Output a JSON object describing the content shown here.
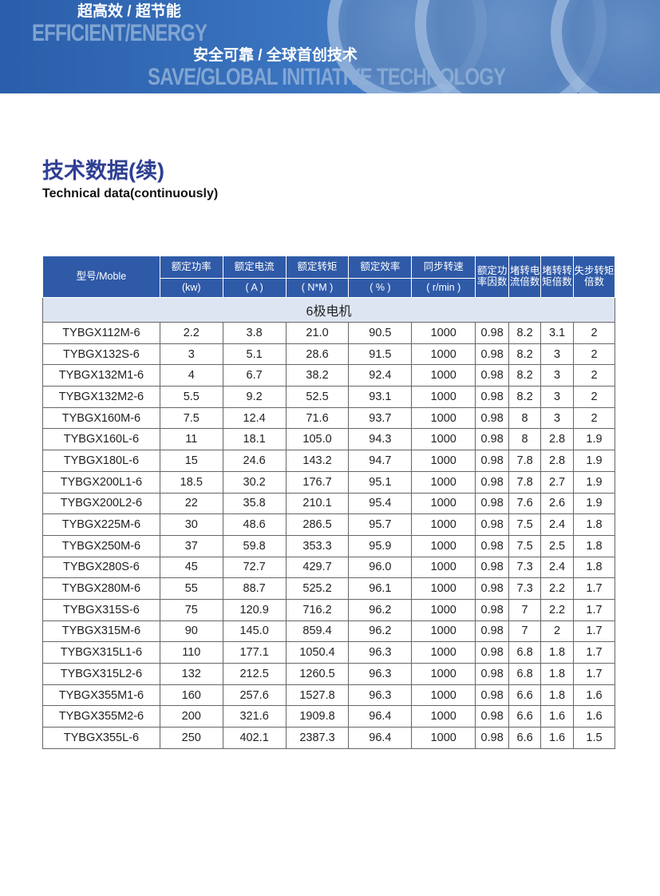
{
  "banner": {
    "line1_cn": "超高效 / 超节能",
    "line1_en": "EFFICIENT/ENERGY",
    "line2_cn": "安全可靠 / 全球首创技术",
    "line2_en": "SAVE/GLOBAL INITIATIVE TECHNOLOGY"
  },
  "heading": {
    "cn": "技术数据(续)",
    "en": "Technical data(continuously)"
  },
  "table": {
    "headers": {
      "model": "型号/Moble",
      "power": "额定功率",
      "power_unit": "(kw)",
      "current": "额定电流",
      "current_unit": "( A )",
      "torque": "额定转矩",
      "torque_unit": "( N*M )",
      "eff": "额定效率",
      "eff_unit": "( % )",
      "speed": "同步转速",
      "speed_unit": "( r/min )",
      "pf": "额定功率因数",
      "lrc": "堵转电流倍数",
      "lrt": "堵转转矩倍数",
      "pullout": "失步转矩倍数"
    },
    "section": "6极电机",
    "rows": [
      [
        "TYBGX112M-6",
        "2.2",
        "3.8",
        "21.0",
        "90.5",
        "1000",
        "0.98",
        "8.2",
        "3.1",
        "2"
      ],
      [
        "TYBGX132S-6",
        "3",
        "5.1",
        "28.6",
        "91.5",
        "1000",
        "0.98",
        "8.2",
        "3",
        "2"
      ],
      [
        "TYBGX132M1-6",
        "4",
        "6.7",
        "38.2",
        "92.4",
        "1000",
        "0.98",
        "8.2",
        "3",
        "2"
      ],
      [
        "TYBGX132M2-6",
        "5.5",
        "9.2",
        "52.5",
        "93.1",
        "1000",
        "0.98",
        "8.2",
        "3",
        "2"
      ],
      [
        "TYBGX160M-6",
        "7.5",
        "12.4",
        "71.6",
        "93.7",
        "1000",
        "0.98",
        "8",
        "3",
        "2"
      ],
      [
        "TYBGX160L-6",
        "11",
        "18.1",
        "105.0",
        "94.3",
        "1000",
        "0.98",
        "8",
        "2.8",
        "1.9"
      ],
      [
        "TYBGX180L-6",
        "15",
        "24.6",
        "143.2",
        "94.7",
        "1000",
        "0.98",
        "7.8",
        "2.8",
        "1.9"
      ],
      [
        "TYBGX200L1-6",
        "18.5",
        "30.2",
        "176.7",
        "95.1",
        "1000",
        "0.98",
        "7.8",
        "2.7",
        "1.9"
      ],
      [
        "TYBGX200L2-6",
        "22",
        "35.8",
        "210.1",
        "95.4",
        "1000",
        "0.98",
        "7.6",
        "2.6",
        "1.9"
      ],
      [
        "TYBGX225M-6",
        "30",
        "48.6",
        "286.5",
        "95.7",
        "1000",
        "0.98",
        "7.5",
        "2.4",
        "1.8"
      ],
      [
        "TYBGX250M-6",
        "37",
        "59.8",
        "353.3",
        "95.9",
        "1000",
        "0.98",
        "7.5",
        "2.5",
        "1.8"
      ],
      [
        "TYBGX280S-6",
        "45",
        "72.7",
        "429.7",
        "96.0",
        "1000",
        "0.98",
        "7.3",
        "2.4",
        "1.8"
      ],
      [
        "TYBGX280M-6",
        "55",
        "88.7",
        "525.2",
        "96.1",
        "1000",
        "0.98",
        "7.3",
        "2.2",
        "1.7"
      ],
      [
        "TYBGX315S-6",
        "75",
        "120.9",
        "716.2",
        "96.2",
        "1000",
        "0.98",
        "7",
        "2.2",
        "1.7"
      ],
      [
        "TYBGX315M-6",
        "90",
        "145.0",
        "859.4",
        "96.2",
        "1000",
        "0.98",
        "7",
        "2",
        "1.7"
      ],
      [
        "TYBGX315L1-6",
        "110",
        "177.1",
        "1050.4",
        "96.3",
        "1000",
        "0.98",
        "6.8",
        "1.8",
        "1.7"
      ],
      [
        "TYBGX315L2-6",
        "132",
        "212.5",
        "1260.5",
        "96.3",
        "1000",
        "0.98",
        "6.8",
        "1.8",
        "1.7"
      ],
      [
        "TYBGX355M1-6",
        "160",
        "257.6",
        "1527.8",
        "96.3",
        "1000",
        "0.98",
        "6.6",
        "1.8",
        "1.6"
      ],
      [
        "TYBGX355M2-6",
        "200",
        "321.6",
        "1909.8",
        "96.4",
        "1000",
        "0.98",
        "6.6",
        "1.6",
        "1.6"
      ],
      [
        "TYBGX355L-6",
        "250",
        "402.1",
        "2387.3",
        "96.4",
        "1000",
        "0.98",
        "6.6",
        "1.6",
        "1.5"
      ]
    ]
  }
}
